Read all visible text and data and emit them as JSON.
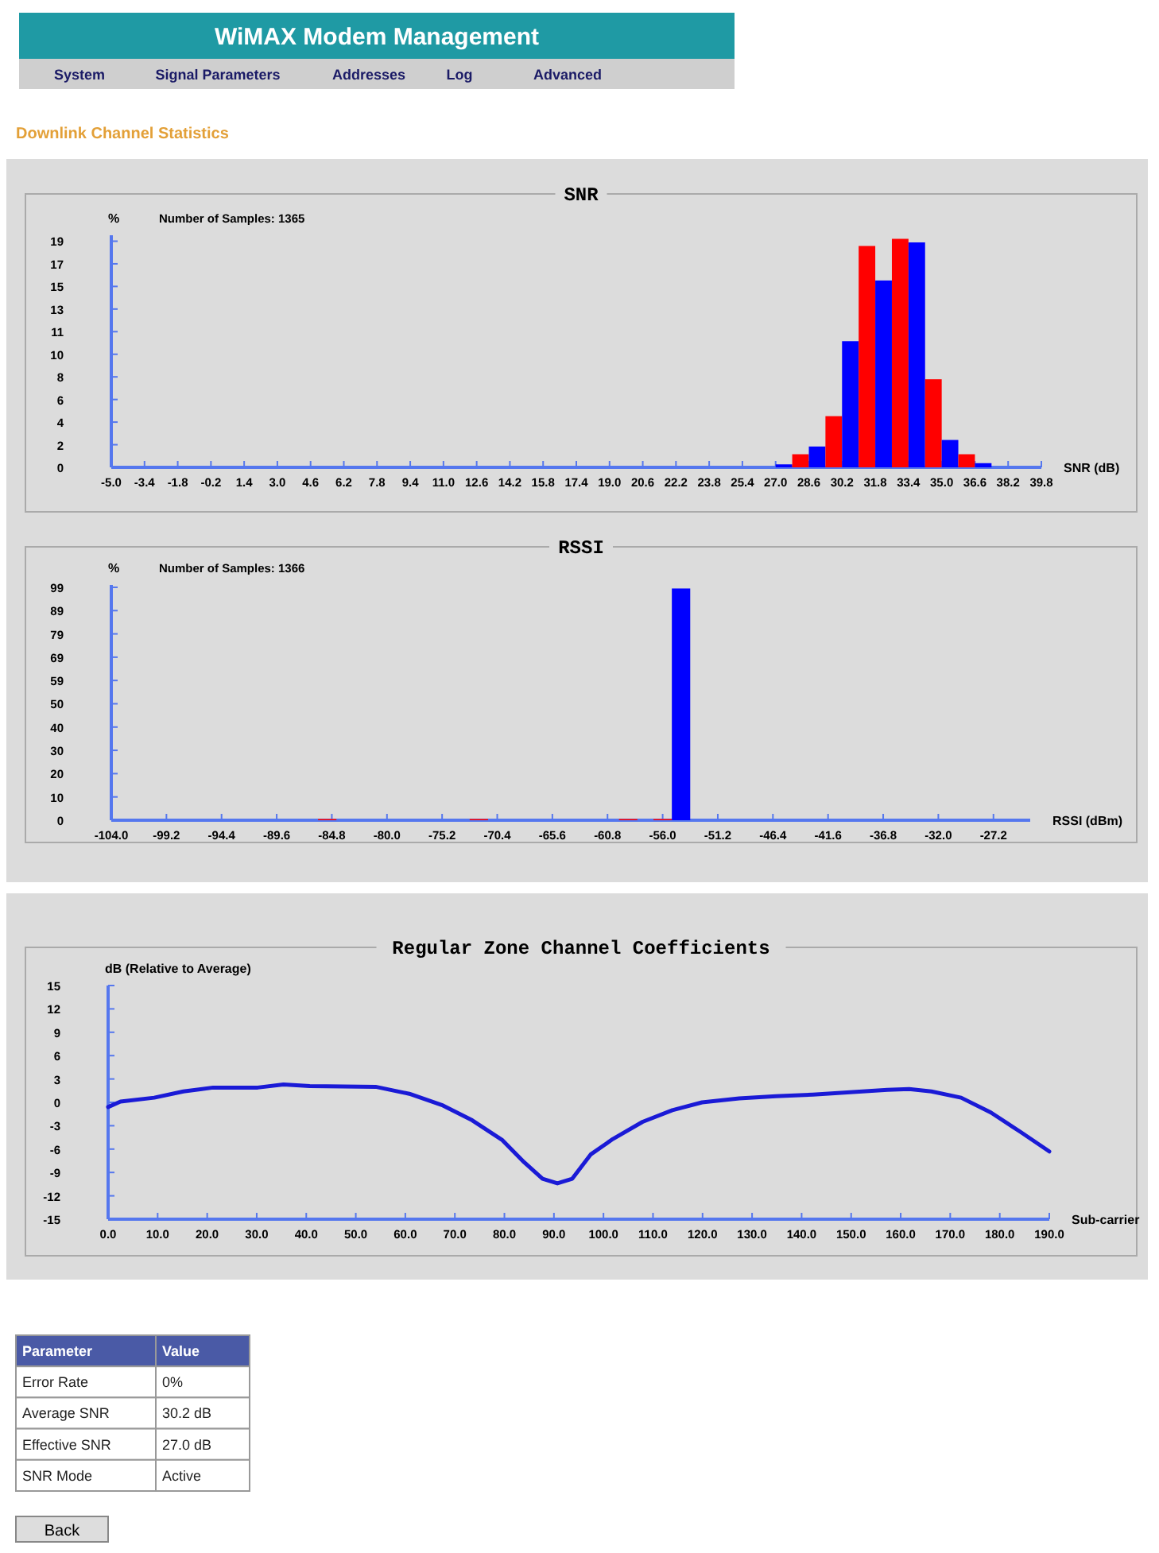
{
  "chart_data": [
    {
      "type": "other",
      "title": "WiMAX Modem Management",
      "subtitle": "Downlink Channel Statistics",
      "annotations": [
        "System",
        "Signal Parameters",
        "Addresses",
        "Log",
        "Advanced"
      ]
    },
    {
      "type": "histogram",
      "title": "SNR",
      "ylabel": "%",
      "xlabel": "SNR (dB)",
      "annotations": [
        "Number of Samples: 1365"
      ],
      "bins": [
        27.0,
        27.8,
        28.6,
        29.4,
        30.2,
        31.0,
        31.8,
        32.6,
        33.4,
        34.2,
        35.0,
        35.8,
        36.6,
        37.4
      ],
      "values": [
        0.25,
        1.1,
        1.75,
        4.3,
        10.6,
        18.6,
        15.7,
        19.2,
        18.9,
        7.4,
        2.3,
        1.1,
        0.35
      ],
      "colors": [
        "#0000ff",
        "#ff0000",
        "#0000ff",
        "#ff0000",
        "#0000ff",
        "#ff0000",
        "#0000ff",
        "#ff0000",
        "#0000ff",
        "#ff0000",
        "#0000ff",
        "#ff0000",
        "#0000ff"
      ],
      "xlim": [
        -5.0,
        39.8
      ],
      "xticks": [
        {
          "value": -5.0,
          "label": "-5.0"
        },
        -3.4,
        -1.8,
        -0.2,
        1.4,
        {
          "value": 3.0,
          "label": "3.0"
        },
        4.6,
        6.2,
        7.8,
        9.4,
        {
          "value": 11.0,
          "label": "11.0"
        },
        12.6,
        14.2,
        15.8,
        17.4,
        {
          "value": 19.0,
          "label": "19.0"
        },
        20.6,
        22.2,
        23.8,
        25.4,
        {
          "value": 27.0,
          "label": "27.0"
        },
        28.6,
        30.2,
        31.8,
        33.4,
        {
          "value": 35.0,
          "label": "35.0"
        },
        36.6,
        38.2,
        39.8
      ],
      "ylim": [
        0,
        19.5
      ],
      "yticks": [
        0,
        {
          "value": 1.9,
          "label": "2"
        },
        {
          "value": 3.8,
          "label": "4"
        },
        {
          "value": 5.7,
          "label": "6"
        },
        {
          "value": 7.6,
          "label": "8"
        },
        {
          "value": 9.5,
          "label": "10"
        },
        {
          "value": 11.4,
          "label": "11"
        },
        {
          "value": 13.3,
          "label": "13"
        },
        {
          "value": 15.2,
          "label": "15"
        },
        {
          "value": 17.1,
          "label": "17"
        },
        19
      ]
    },
    {
      "type": "histogram",
      "title": "RSSI",
      "ylabel": "%",
      "xlabel": "RSSI (dBm)",
      "annotations": [
        "Number of Samples: 1366"
      ],
      "bins": [
        -86.0,
        -84.4,
        -72.8,
        -71.2,
        -59.8,
        -58.2,
        -56.8,
        -55.2,
        -53.6
      ],
      "values": [
        0.5,
        0,
        0.5,
        0,
        0.5,
        0,
        0.5,
        98.5
      ],
      "colors": [
        "#ff0000",
        "#ff0000",
        "#ff0000",
        "#ff0000",
        "#ff0000",
        "#ff0000",
        "#ff0000",
        "#0000ff"
      ],
      "xlim": [
        -104.0,
        -24.0
      ],
      "xticks": [
        {
          "value": -104.0,
          "label": "-104.0"
        },
        -99.2,
        -94.4,
        -89.6,
        -84.8,
        {
          "value": -80.0,
          "label": "-80.0"
        },
        -75.2,
        -70.4,
        -65.6,
        -60.8,
        {
          "value": -56.0,
          "label": "-56.0"
        },
        -51.2,
        -46.4,
        -41.6,
        -36.8,
        {
          "value": -32.0,
          "label": "-32.0"
        },
        -27.2
      ],
      "ylim": [
        0,
        100
      ],
      "yticks": [
        0,
        {
          "value": 9.9,
          "label": "10"
        },
        {
          "value": 19.8,
          "label": "20"
        },
        {
          "value": 29.7,
          "label": "30"
        },
        {
          "value": 39.6,
          "label": "40"
        },
        {
          "value": 49.5,
          "label": "50"
        },
        {
          "value": 59.4,
          "label": "59"
        },
        {
          "value": 69.3,
          "label": "69"
        },
        {
          "value": 79.2,
          "label": "79"
        },
        {
          "value": 89.1,
          "label": "89"
        },
        99
      ]
    },
    {
      "type": "line",
      "title": "Regular Zone Channel Coefficients",
      "ylabel": "dB (Relative to Average)",
      "xlabel": "Sub-carrier",
      "color": "#1a1ad6",
      "x": [
        0,
        2.5,
        9.3,
        15.2,
        21.2,
        30.2,
        35.4,
        40.7,
        54,
        60.8,
        67.6,
        73.5,
        79.5,
        84,
        87.7,
        90.7,
        93.7,
        97.4,
        101.9,
        107.9,
        113.9,
        119.9,
        127.4,
        134.8,
        142.3,
        149.8,
        157.3,
        161.7,
        166.2,
        172.2,
        178.2,
        184.2,
        190
      ],
      "values": [
        -0.6,
        0.1,
        0.6,
        1.4,
        1.9,
        1.9,
        2.3,
        2.1,
        2.0,
        1.1,
        -0.4,
        -2.3,
        -4.8,
        -7.7,
        -9.8,
        -10.4,
        -9.8,
        -6.7,
        -4.7,
        -2.5,
        -1.0,
        0,
        0.5,
        0.8,
        1.0,
        1.3,
        1.6,
        1.7,
        1.4,
        0.6,
        -1.3,
        -3.8,
        -6.3
      ],
      "xlim": [
        0,
        190
      ],
      "xticks": [
        {
          "value": 0,
          "label": "0.0"
        },
        {
          "value": 10,
          "label": "10.0"
        },
        {
          "value": 20,
          "label": "20.0"
        },
        {
          "value": 30,
          "label": "30.0"
        },
        {
          "value": 40,
          "label": "40.0"
        },
        {
          "value": 50,
          "label": "50.0"
        },
        {
          "value": 60,
          "label": "60.0"
        },
        {
          "value": 70,
          "label": "70.0"
        },
        {
          "value": 80,
          "label": "80.0"
        },
        {
          "value": 90,
          "label": "90.0"
        },
        {
          "value": 100,
          "label": "100.0"
        },
        {
          "value": 110,
          "label": "110.0"
        },
        {
          "value": 120,
          "label": "120.0"
        },
        {
          "value": 130,
          "label": "130.0"
        },
        {
          "value": 140,
          "label": "140.0"
        },
        {
          "value": 150,
          "label": "150.0"
        },
        {
          "value": 160,
          "label": "160.0"
        },
        {
          "value": 170,
          "label": "170.0"
        },
        {
          "value": 180,
          "label": "180.0"
        },
        {
          "value": 190,
          "label": "190.0"
        }
      ],
      "ylim": [
        -15,
        15
      ],
      "yticks": [
        -15,
        -12,
        -9,
        -6,
        -3,
        0,
        3,
        6,
        9,
        12,
        15
      ]
    },
    {
      "type": "other",
      "annotations": [
        "Parameter",
        "Value",
        "Error Rate",
        "0%",
        "Average SNR",
        "30.2 dB",
        "Effective SNR",
        "27.0 dB",
        "SNR Mode",
        "Active",
        "Back"
      ]
    }
  ]
}
